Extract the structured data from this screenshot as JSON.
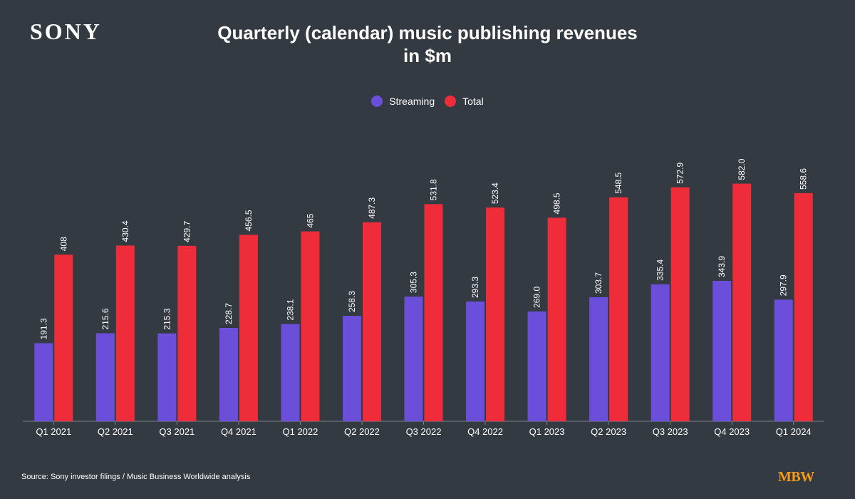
{
  "brand": {
    "logo_text": "SONY",
    "mbw_logo_text": "MBW"
  },
  "source_text": "Source: Sony investor filings / Music Business Worldwide analysis",
  "colors": {
    "background": "#343a42",
    "streaming": "#6b4fdb",
    "total": "#ef2d3a",
    "axis": "#7b828b",
    "mbw": "#f39a1e"
  },
  "chart_data": {
    "type": "bar",
    "title": "Quarterly (calendar) music publishing revenues in $m",
    "xlabel": "",
    "ylabel": "",
    "legend_position": "top-center",
    "grid": false,
    "ylim": [
      0,
      700
    ],
    "categories": [
      "Q1 2021",
      "Q2 2021",
      "Q3 2021",
      "Q4 2021",
      "Q1 2022",
      "Q2 2022",
      "Q3 2022",
      "Q4 2022",
      "Q1 2023",
      "Q2 2023",
      "Q3 2023",
      "Q4 2023",
      "Q1 2024"
    ],
    "series": [
      {
        "name": "Streaming",
        "values": [
          191.3,
          215.6,
          215.3,
          228.7,
          238.1,
          258.3,
          305.3,
          293.3,
          269.0,
          303.7,
          335.4,
          343.9,
          297.9
        ],
        "labels": [
          "191.3",
          "215.6",
          "215.3",
          "228.7",
          "238.1",
          "258.3",
          "305.3",
          "293.3",
          "269.0",
          "303.7",
          "335.4",
          "343.9",
          "297.9"
        ]
      },
      {
        "name": "Total",
        "values": [
          408,
          430.4,
          429.7,
          456.5,
          465,
          487.3,
          531.8,
          523.4,
          498.5,
          548.5,
          572.9,
          582.0,
          558.6
        ],
        "labels": [
          "408",
          "430.4",
          "429.7",
          "456.5",
          "465",
          "487.3",
          "531.8",
          "523.4",
          "498.5",
          "548.5",
          "572.9",
          "582.0",
          "558.6"
        ]
      }
    ]
  }
}
